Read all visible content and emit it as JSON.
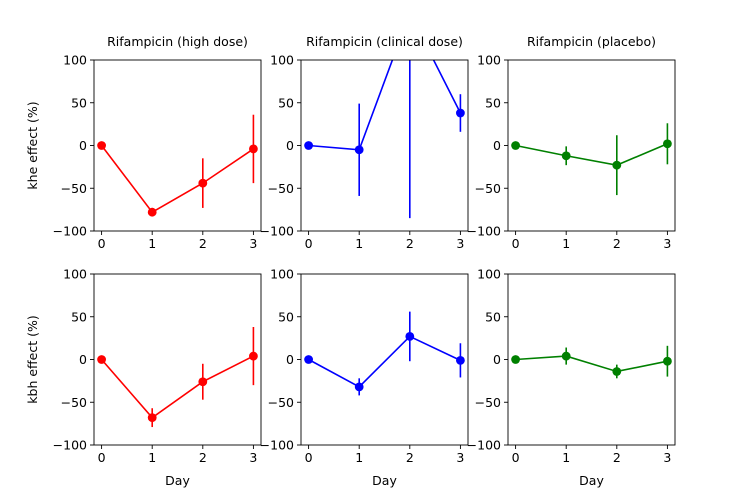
{
  "chart_data": [
    {
      "type": "line",
      "title": "Rifampicin (high dose)",
      "xlabel": "",
      "ylabel": "khe effect (%)",
      "color": "#ff0000",
      "x": [
        0,
        1,
        2,
        3
      ],
      "xticks": [
        "0",
        "1",
        "2",
        "3"
      ],
      "yticks": [
        "100",
        "50",
        "0",
        "−50",
        "−100"
      ],
      "ylim": [
        -100,
        100
      ],
      "values": [
        0,
        -78,
        -44,
        -4
      ],
      "errors": [
        0,
        5,
        29,
        40
      ]
    },
    {
      "type": "line",
      "title": "Rifampicin (clinical dose)",
      "xlabel": "",
      "ylabel": "",
      "color": "#0000ff",
      "x": [
        0,
        1,
        2,
        3
      ],
      "xticks": [
        "0",
        "1",
        "2",
        "3"
      ],
      "yticks": [
        "100",
        "50",
        "0",
        "−50",
        "−100"
      ],
      "ylim": [
        -100,
        100
      ],
      "values": [
        0,
        -5,
        155,
        38
      ],
      "errors": [
        0,
        54,
        240,
        22
      ]
    },
    {
      "type": "line",
      "title": "Rifampicin (placebo)",
      "xlabel": "",
      "ylabel": "",
      "color": "#008000",
      "x": [
        0,
        1,
        2,
        3
      ],
      "xticks": [
        "0",
        "1",
        "2",
        "3"
      ],
      "yticks": [
        "100",
        "50",
        "0",
        "−50",
        "−100"
      ],
      "ylim": [
        -100,
        100
      ],
      "values": [
        0,
        -12,
        -23,
        2
      ],
      "errors": [
        0,
        11,
        35,
        24
      ]
    },
    {
      "type": "line",
      "title": "",
      "xlabel": "Day",
      "ylabel": "kbh effect (%)",
      "color": "#ff0000",
      "x": [
        0,
        1,
        2,
        3
      ],
      "xticks": [
        "0",
        "1",
        "2",
        "3"
      ],
      "yticks": [
        "100",
        "50",
        "0",
        "−50",
        "−100"
      ],
      "ylim": [
        -100,
        100
      ],
      "values": [
        0,
        -68,
        -26,
        4
      ],
      "errors": [
        0,
        11,
        21,
        34
      ]
    },
    {
      "type": "line",
      "title": "",
      "xlabel": "Day",
      "ylabel": "",
      "color": "#0000ff",
      "x": [
        0,
        1,
        2,
        3
      ],
      "xticks": [
        "0",
        "1",
        "2",
        "3"
      ],
      "yticks": [
        "100",
        "50",
        "0",
        "−50",
        "−100"
      ],
      "ylim": [
        -100,
        100
      ],
      "values": [
        0,
        -32,
        27,
        -1
      ],
      "errors": [
        0,
        10,
        29,
        20
      ]
    },
    {
      "type": "line",
      "title": "",
      "xlabel": "Day",
      "ylabel": "",
      "color": "#008000",
      "x": [
        0,
        1,
        2,
        3
      ],
      "xticks": [
        "0",
        "1",
        "2",
        "3"
      ],
      "yticks": [
        "100",
        "50",
        "0",
        "−50",
        "−100"
      ],
      "ylim": [
        -100,
        100
      ],
      "values": [
        0,
        4,
        -14,
        -2
      ],
      "errors": [
        0,
        10,
        8,
        18
      ]
    }
  ]
}
